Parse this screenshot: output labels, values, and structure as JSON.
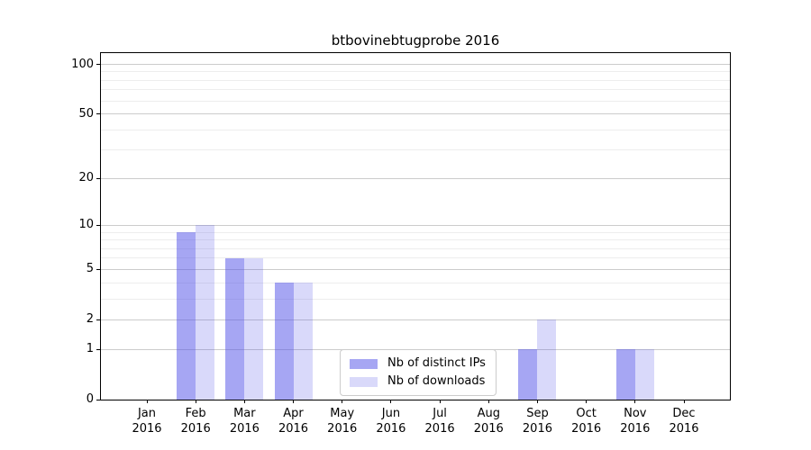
{
  "title": "btbovinebtugprobe 2016",
  "chart_data": {
    "type": "bar",
    "title": "btbovinebtugprobe 2016",
    "categories": [
      "Jan",
      "Feb",
      "Mar",
      "Apr",
      "May",
      "Jun",
      "Jul",
      "Aug",
      "Sep",
      "Oct",
      "Nov",
      "Dec"
    ],
    "category_year": "2016",
    "series": [
      {
        "name": "Nb of distinct IPs",
        "color": "rgba(77,77,231,0.50)",
        "values": [
          0,
          9,
          6,
          4,
          0,
          0,
          0,
          0,
          1,
          0,
          1,
          0
        ]
      },
      {
        "name": "Nb of downloads",
        "color": "rgba(77,77,231,0.21)",
        "values": [
          0,
          10,
          6,
          4,
          0,
          0,
          0,
          0,
          2,
          0,
          1,
          0
        ]
      }
    ],
    "xlabel": "",
    "ylabel": "",
    "scale": "log1p",
    "ylim": [
      0,
      117
    ],
    "yticks": [
      0,
      1,
      2,
      5,
      10,
      20,
      50,
      100
    ],
    "minor_yticks": [
      3,
      4,
      6,
      7,
      8,
      9,
      30,
      40,
      60,
      70,
      80,
      90
    ],
    "grid": "on",
    "legend_position": "lower center",
    "colors": {
      "major_grid": "#cccccc",
      "minor_grid": "#ededed",
      "axis": "#000000",
      "background": "#ffffff"
    }
  }
}
